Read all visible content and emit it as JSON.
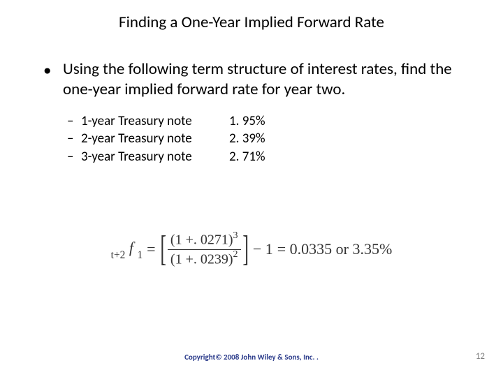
{
  "title": "Finding a One-Year Implied Forward Rate",
  "bullet_text": "Using the following term structure of interest rates, find the one-year implied forward rate for year two.",
  "rates": [
    {
      "label": "1-year Treasury note",
      "value": "1. 95%"
    },
    {
      "label": "2-year Treasury note",
      "value": "2. 39%"
    },
    {
      "label": "3-year Treasury note",
      "value": "2. 71%"
    }
  ],
  "formula": {
    "lhs_prefix": "t+2",
    "lhs_symbol": "f",
    "lhs_sub": "1",
    "eq": "=",
    "num_inner": "(1 +. 0271)",
    "num_exp": "3",
    "den_inner": "(1 +. 0239)",
    "den_exp": "2",
    "minus_one": "− 1",
    "result": "= 0.0335 or 3.35%"
  },
  "footer": "Copyright© 2008 John Wiley & Sons, Inc. .",
  "pagenum": "12"
}
